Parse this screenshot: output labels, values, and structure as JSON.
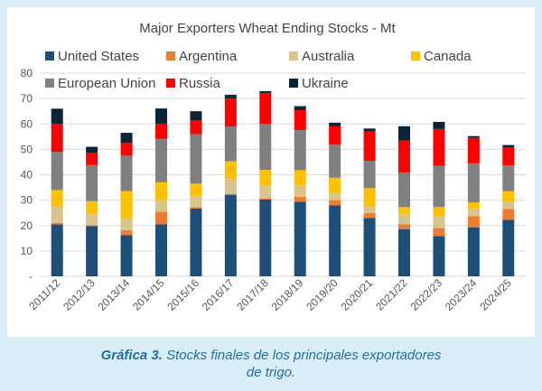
{
  "caption": {
    "label": "Gráfica 3.",
    "line1": " Stocks finales de los principales exportadores",
    "line2": "de trigo."
  },
  "chart_data": {
    "type": "bar",
    "stacked": true,
    "title": "Major Exporters Wheat Ending Stocks - Mt",
    "xlabel": "",
    "ylabel": "",
    "ylim": [
      0,
      80
    ],
    "yticks": [
      "-",
      "10",
      "20",
      "30",
      "40",
      "50",
      "60",
      "70",
      "80"
    ],
    "grid": true,
    "legend_position": "top",
    "categories": [
      "2011/12",
      "2012/13",
      "2013/14",
      "2014/15",
      "2015/16",
      "2016/17",
      "2017/18",
      "2018/19",
      "2019/20",
      "2020/21",
      "2021/22",
      "2022/23",
      "2023/24",
      "2024/25"
    ],
    "series": [
      {
        "name": "United States",
        "color": "#1f4e79",
        "values": [
          20.5,
          19.8,
          16.2,
          20.5,
          26.7,
          32.1,
          30.3,
          29.4,
          28.0,
          23.0,
          18.5,
          15.8,
          19.2,
          22.3
        ]
      },
      {
        "name": "Argentina",
        "color": "#ed7d31",
        "values": [
          0.5,
          0.3,
          2.0,
          5.0,
          0.5,
          0.4,
          0.4,
          2.0,
          2.0,
          2.0,
          2.0,
          3.2,
          4.5,
          4.2
        ]
      },
      {
        "name": "Australia",
        "color": "#d9c48b",
        "values": [
          6.5,
          4.5,
          4.5,
          4.5,
          4.3,
          5.8,
          4.8,
          4.4,
          2.8,
          2.5,
          4.0,
          4.5,
          3.0,
          3.0
        ]
      },
      {
        "name": "Canada",
        "color": "#ffc000",
        "values": [
          6.5,
          5.0,
          10.8,
          7.0,
          5.0,
          7.0,
          6.4,
          6.0,
          6.0,
          7.2,
          2.8,
          3.8,
          2.4,
          4.0
        ]
      },
      {
        "name": "European Union",
        "color": "#808080",
        "values": [
          15.0,
          14.2,
          14.0,
          17.1,
          19.5,
          13.7,
          18.1,
          15.8,
          13.0,
          10.8,
          13.6,
          16.2,
          15.4,
          10.2
        ]
      },
      {
        "name": "Russia",
        "color": "#ff0000",
        "values": [
          11.0,
          4.9,
          5.0,
          6.0,
          5.5,
          11.0,
          12.2,
          7.8,
          7.4,
          11.5,
          12.5,
          14.5,
          10.0,
          7.0
        ]
      },
      {
        "name": "Ukraine",
        "color": "#0d2436",
        "values": [
          6.0,
          2.3,
          4.0,
          6.0,
          3.5,
          1.5,
          0.7,
          1.6,
          1.3,
          1.2,
          5.7,
          2.8,
          0.7,
          1.0
        ]
      }
    ]
  }
}
